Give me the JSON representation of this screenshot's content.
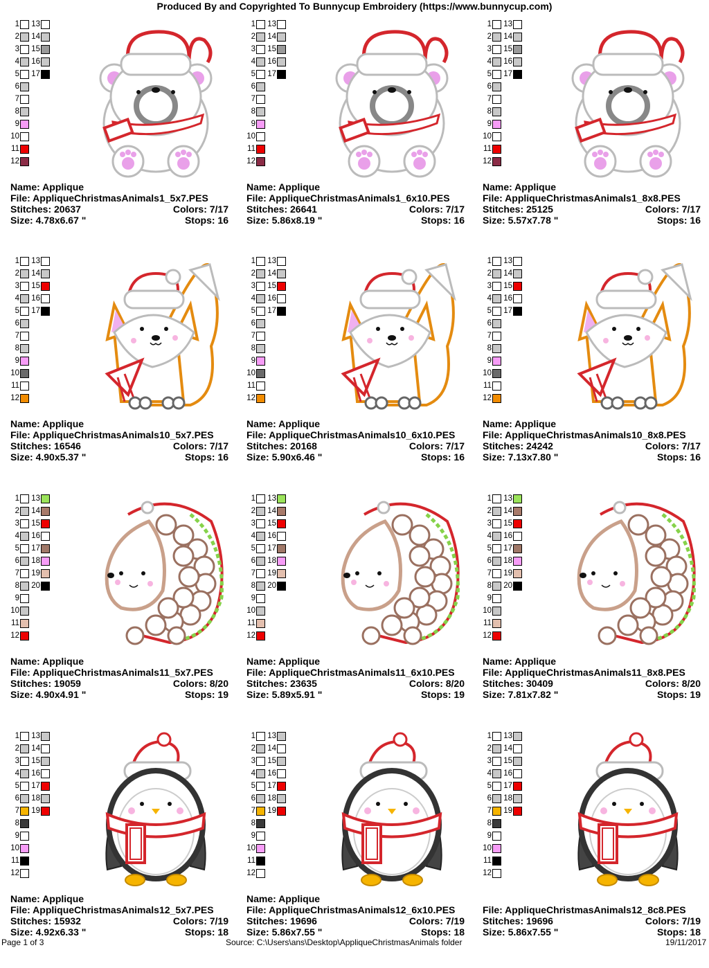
{
  "header": "Produced By and Copyrighted To Bunnycup Embroidery (https://www.bunnycup.com)",
  "footer": {
    "page": "Page 1 of 3",
    "source": "Source: C:\\Users\\ans\\Desktop\\AppliqueChristmasAnimals folder",
    "date": "19/11/2017"
  },
  "labels": {
    "name": "Name: Applique",
    "file": "File: ",
    "stitches": "Stitches: ",
    "colors": "Colors: ",
    "size": "Size: ",
    "stops": "Stops: ",
    "unit": " \""
  },
  "cards": [
    {
      "animal": "bear",
      "name": "Name: Applique",
      "file": "AppliqueChristmasAnimals1_5x7.PES",
      "stitches": "20637",
      "colors": "7/17",
      "size": "4.78x6.67",
      "stops": "16",
      "swatches": [
        "#fff",
        "#c8c8c8",
        "#fff",
        "#c8c8c8",
        "#fff",
        "#c8c8c8",
        "#fff",
        "#c8c8c8",
        "#f79cf7",
        "#fff",
        "#ee0000",
        "#8b2c46",
        "#fff",
        "#c8c8c8",
        "#9a9a9a",
        "#c8c8c8",
        "#000"
      ]
    },
    {
      "animal": "bear",
      "name": "Name: Applique",
      "file": "AppliqueChristmasAnimals1_6x10.PES",
      "stitches": "26641",
      "colors": "7/17",
      "size": "5.86x8.19",
      "stops": "16",
      "swatches": [
        "#fff",
        "#c8c8c8",
        "#fff",
        "#c8c8c8",
        "#fff",
        "#c8c8c8",
        "#fff",
        "#c8c8c8",
        "#f79cf7",
        "#fff",
        "#ee0000",
        "#8b2c46",
        "#fff",
        "#c8c8c8",
        "#9a9a9a",
        "#c8c8c8",
        "#000"
      ]
    },
    {
      "animal": "bear",
      "name": "Name: Applique",
      "file": "AppliqueChristmasAnimals1_8x8.PES",
      "stitches": "25125",
      "colors": "7/17",
      "size": "5.57x7.78",
      "stops": "16",
      "swatches": [
        "#fff",
        "#c8c8c8",
        "#fff",
        "#c8c8c8",
        "#fff",
        "#c8c8c8",
        "#fff",
        "#c8c8c8",
        "#f79cf7",
        "#fff",
        "#ee0000",
        "#8b2c46",
        "#fff",
        "#c8c8c8",
        "#9a9a9a",
        "#c8c8c8",
        "#000"
      ]
    },
    {
      "animal": "fox",
      "name": "Name: Applique",
      "file": "AppliqueChristmasAnimals10_5x7.PES",
      "stitches": "16546",
      "colors": "7/17",
      "size": "4.90x5.37",
      "stops": "16",
      "swatches": [
        "#fff",
        "#c8c8c8",
        "#fff",
        "#c8c8c8",
        "#fff",
        "#c8c8c8",
        "#fff",
        "#c8c8c8",
        "#f79cf7",
        "#6a6a6a",
        "#fff",
        "#f28c00",
        "#fff",
        "#c8c8c8",
        "#ee0000",
        "#fff",
        "#000"
      ]
    },
    {
      "animal": "fox",
      "name": "Name: Applique",
      "file": "AppliqueChristmasAnimals10_6x10.PES",
      "stitches": "20168",
      "colors": "7/17",
      "size": "5.90x6.46",
      "stops": "16",
      "swatches": [
        "#fff",
        "#c8c8c8",
        "#fff",
        "#c8c8c8",
        "#fff",
        "#c8c8c8",
        "#fff",
        "#c8c8c8",
        "#f79cf7",
        "#6a6a6a",
        "#fff",
        "#f28c00",
        "#fff",
        "#c8c8c8",
        "#ee0000",
        "#fff",
        "#000"
      ]
    },
    {
      "animal": "fox",
      "name": "Name: Applique",
      "file": "AppliqueChristmasAnimals10_8x8.PES",
      "stitches": "24242",
      "colors": "7/17",
      "size": "7.13x7.80",
      "stops": "16",
      "swatches": [
        "#fff",
        "#c8c8c8",
        "#fff",
        "#c8c8c8",
        "#fff",
        "#c8c8c8",
        "#fff",
        "#c8c8c8",
        "#f79cf7",
        "#6a6a6a",
        "#fff",
        "#f28c00",
        "#fff",
        "#c8c8c8",
        "#ee0000",
        "#fff",
        "#000"
      ]
    },
    {
      "animal": "hedgehog",
      "name": "Name: Applique",
      "file": "AppliqueChristmasAnimals11_5x7.PES",
      "stitches": "19059",
      "colors": "8/20",
      "size": "4.90x4.91",
      "stops": "19",
      "swatches": [
        "#fff",
        "#c8c8c8",
        "#fff",
        "#c8c8c8",
        "#fff",
        "#c8c8c8",
        "#fff",
        "#c8c8c8",
        "#fff",
        "#c8c8c8",
        "#e3bfae",
        "#ee0000",
        "#9be35a",
        "#a87a6a",
        "#ee0000",
        "#fff",
        "#a07868",
        "#f79cf7",
        "#e3bfae",
        "#000"
      ]
    },
    {
      "animal": "hedgehog",
      "name": "Name: Applique",
      "file": "AppliqueChristmasAnimals11_6x10.PES",
      "stitches": "23635",
      "colors": "8/20",
      "size": "5.89x5.91",
      "stops": "19",
      "swatches": [
        "#fff",
        "#c8c8c8",
        "#fff",
        "#c8c8c8",
        "#fff",
        "#c8c8c8",
        "#fff",
        "#c8c8c8",
        "#fff",
        "#c8c8c8",
        "#e3bfae",
        "#ee0000",
        "#9be35a",
        "#a87a6a",
        "#ee0000",
        "#fff",
        "#a07868",
        "#f79cf7",
        "#e3bfae",
        "#000"
      ]
    },
    {
      "animal": "hedgehog",
      "name": "Name: Applique",
      "file": "AppliqueChristmasAnimals11_8x8.PES",
      "stitches": "30409",
      "colors": "8/20",
      "size": "7.81x7.82",
      "stops": "19",
      "swatches": [
        "#fff",
        "#c8c8c8",
        "#fff",
        "#c8c8c8",
        "#fff",
        "#c8c8c8",
        "#fff",
        "#c8c8c8",
        "#fff",
        "#c8c8c8",
        "#e3bfae",
        "#ee0000",
        "#9be35a",
        "#a87a6a",
        "#ee0000",
        "#fff",
        "#a07868",
        "#f79cf7",
        "#e3bfae",
        "#000"
      ]
    },
    {
      "animal": "penguin",
      "name": "Name: Applique",
      "file": "AppliqueChristmasAnimals12_5x7.PES",
      "stitches": "15932",
      "colors": "7/19",
      "size": "4.92x6.33",
      "stops": "18",
      "swatches": [
        "#fff",
        "#c8c8c8",
        "#fff",
        "#c8c8c8",
        "#fff",
        "#c8c8c8",
        "#f6b400",
        "#3a3a3a",
        "#fff",
        "#f79cf7",
        "#000",
        "#fff",
        "#c8c8c8",
        "#fff",
        "#c8c8c8",
        "#fff",
        "#ee0000",
        "#c8c8c8",
        "#ee0000"
      ]
    },
    {
      "animal": "penguin",
      "name": "Name: Applique",
      "file": "AppliqueChristmasAnimals12_6x10.PES",
      "stitches": "19696",
      "colors": "7/19",
      "size": "5.86x7.55",
      "stops": "18",
      "swatches": [
        "#fff",
        "#c8c8c8",
        "#fff",
        "#c8c8c8",
        "#fff",
        "#c8c8c8",
        "#f6b400",
        "#3a3a3a",
        "#fff",
        "#f79cf7",
        "#000",
        "#fff",
        "#c8c8c8",
        "#fff",
        "#c8c8c8",
        "#fff",
        "#ee0000",
        "#c8c8c8",
        "#ee0000"
      ]
    },
    {
      "animal": "penguin",
      "name": "",
      "file": "AppliqueChristmasAnimals12_8c8.PES",
      "stitches": "19696",
      "colors": "7/19",
      "size": "5.86x7.55",
      "stops": "18",
      "swatches": [
        "#fff",
        "#c8c8c8",
        "#fff",
        "#c8c8c8",
        "#fff",
        "#c8c8c8",
        "#f6b400",
        "#3a3a3a",
        "#fff",
        "#f79cf7",
        "#000",
        "#fff",
        "#c8c8c8",
        "#fff",
        "#c8c8c8",
        "#fff",
        "#ee0000",
        "#c8c8c8",
        "#ee0000"
      ]
    }
  ]
}
